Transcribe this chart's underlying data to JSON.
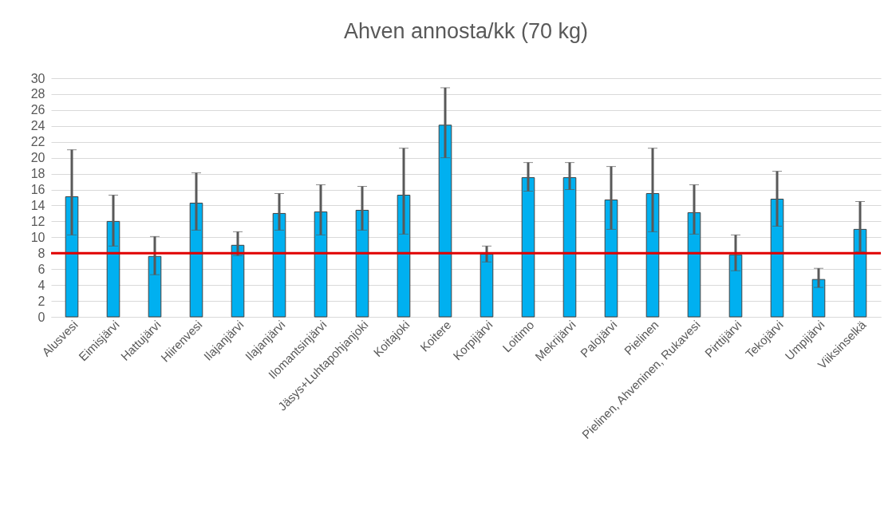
{
  "chart_data": {
    "type": "bar",
    "title": "Ahven annosta/kk (70 kg)",
    "categories": [
      "Alusvesi",
      "Eimisjärvi",
      "Hattujärvi",
      "Hiirenvesi",
      "Ilajanjärvi",
      "Ilajanjärvi",
      "Ilomantsinjärvi",
      "Jäsys+Luhtapohjanjoki",
      "Koitajoki",
      "Koitere",
      "Korpijärvi",
      "Loitimo",
      "Mekrijärvi",
      "Palojärvi",
      "Pielinen",
      "Pielinen, Ahveninen, Rukavesi",
      "Pirttijärvi",
      "Tekojärvi",
      "Umpijärvi",
      "Viiksinselkä"
    ],
    "values": [
      15.1,
      12.0,
      7.6,
      14.3,
      9.0,
      13.0,
      13.2,
      13.4,
      15.3,
      24.1,
      7.9,
      17.5,
      17.5,
      14.7,
      15.5,
      13.1,
      7.8,
      14.8,
      4.7,
      11.0
    ],
    "errors": [
      [
        10.3,
        21.0
      ],
      [
        8.9,
        15.3
      ],
      [
        5.3,
        10.1
      ],
      [
        10.9,
        18.1
      ],
      [
        7.7,
        10.7
      ],
      [
        10.9,
        15.5
      ],
      [
        10.3,
        16.6
      ],
      [
        10.9,
        16.4
      ],
      [
        10.4,
        21.2
      ],
      [
        20.0,
        28.8
      ],
      [
        6.9,
        8.9
      ],
      [
        15.8,
        19.4
      ],
      [
        16.0,
        19.4
      ],
      [
        11.0,
        18.9
      ],
      [
        10.7,
        21.2
      ],
      [
        10.4,
        16.6
      ],
      [
        5.8,
        10.3
      ],
      [
        11.4,
        18.3
      ],
      [
        3.7,
        6.1
      ],
      [
        8.2,
        14.5
      ]
    ],
    "color": "#00b0f0",
    "ylim": [
      0,
      30
    ],
    "yticks": [
      0,
      2,
      4,
      6,
      8,
      10,
      12,
      14,
      16,
      18,
      20,
      22,
      24,
      26,
      28,
      30
    ],
    "grid": "y",
    "ref_lines": [
      {
        "axis": "y",
        "value": 8,
        "color": "#e00000"
      }
    ]
  }
}
